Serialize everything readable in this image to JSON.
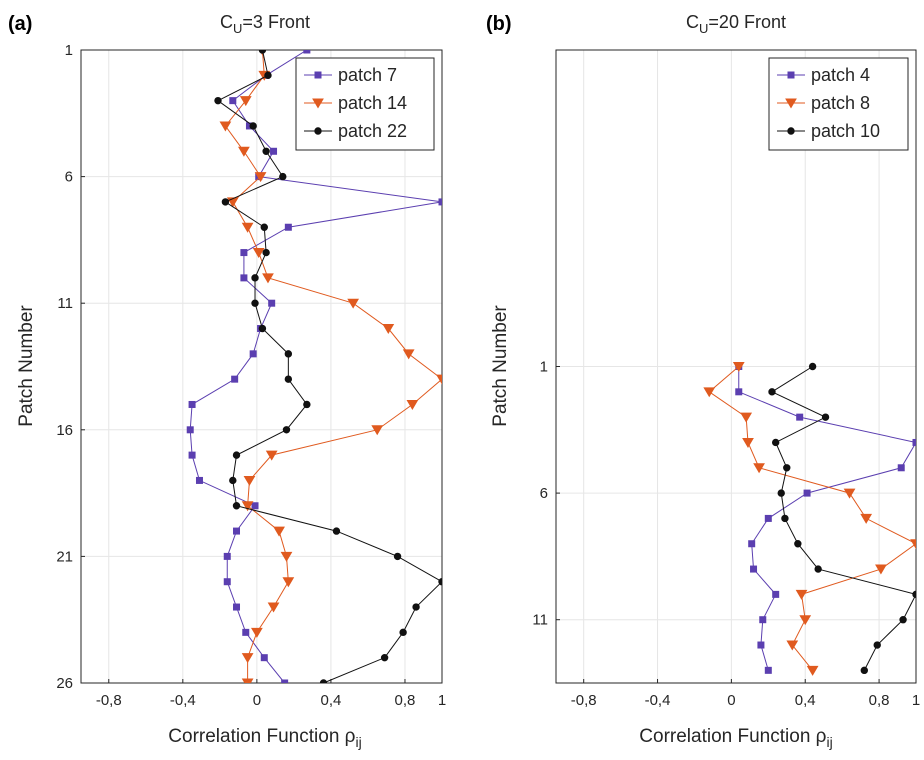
{
  "chart_data": [
    {
      "type": "line",
      "panel_label": "(a)",
      "title": "C",
      "title_sub": "U",
      "title_rest": "=3 Front",
      "xlabel": "Correlation Function ρ",
      "xlabel_sub": "ij",
      "ylabel": "Patch Number",
      "xlim": [
        -0.95,
        1
      ],
      "ylim": [
        1,
        26
      ],
      "y_reversed": true,
      "xticks": [
        -0.8,
        -0.4,
        0,
        0.4,
        0.8,
        1
      ],
      "xtick_labels": [
        "-0,8",
        "-0,4",
        "0",
        "0,4",
        "0,8",
        "1"
      ],
      "yticks": [
        1,
        6,
        11,
        16,
        21,
        26
      ],
      "ytick_labels": [
        "1",
        "6",
        "11",
        "16",
        "21",
        "26"
      ],
      "grid": true,
      "legend_position": "top-right",
      "y": [
        1,
        2,
        3,
        4,
        5,
        6,
        7,
        8,
        9,
        10,
        11,
        12,
        13,
        14,
        15,
        16,
        17,
        18,
        19,
        20,
        21,
        22,
        23,
        24,
        25,
        26
      ],
      "series": [
        {
          "name": "patch 7",
          "color": "#5b3fb0",
          "marker": "square",
          "x": [
            0.27,
            0.05,
            -0.13,
            -0.04,
            0.09,
            0.01,
            1.0,
            0.17,
            -0.07,
            -0.07,
            0.08,
            0.02,
            -0.02,
            -0.12,
            -0.35,
            -0.36,
            -0.35,
            -0.31,
            -0.01,
            -0.11,
            -0.16,
            -0.16,
            -0.11,
            -0.06,
            0.04,
            0.15
          ]
        },
        {
          "name": "patch 14",
          "color": "#e05a1f",
          "marker": "triangle-down",
          "x": [
            0.03,
            0.04,
            -0.06,
            -0.17,
            -0.07,
            0.02,
            -0.13,
            -0.05,
            0.01,
            0.06,
            0.52,
            0.71,
            0.82,
            1.0,
            0.84,
            0.65,
            0.08,
            -0.04,
            -0.05,
            0.12,
            0.16,
            0.17,
            0.09,
            0.0,
            -0.05,
            -0.05
          ]
        },
        {
          "name": "patch 22",
          "color": "#111111",
          "marker": "circle",
          "x": [
            0.03,
            0.06,
            -0.21,
            -0.02,
            0.05,
            0.14,
            -0.17,
            0.04,
            0.05,
            -0.01,
            -0.01,
            0.03,
            0.17,
            0.17,
            0.27,
            0.16,
            -0.11,
            -0.13,
            -0.11,
            0.43,
            0.76,
            1.0,
            0.86,
            0.79,
            0.69,
            0.36
          ]
        }
      ]
    },
    {
      "type": "line",
      "panel_label": "(b)",
      "title": "C",
      "title_sub": "U",
      "title_rest": "=20 Front",
      "xlabel": "Correlation Function ρ",
      "xlabel_sub": "ij",
      "ylabel": "Patch Number",
      "xlim": [
        -0.95,
        1
      ],
      "ylim": [
        -11.5,
        13.5
      ],
      "y_reversed": true,
      "xticks": [
        -0.8,
        -0.4,
        0,
        0.4,
        0.8,
        1
      ],
      "xtick_labels": [
        "-0,8",
        "-0,4",
        "0",
        "0,4",
        "0,8",
        "1"
      ],
      "yticks": [
        1,
        6,
        11
      ],
      "ytick_labels": [
        "1",
        "6",
        "11"
      ],
      "grid": true,
      "legend_position": "top-right",
      "y": [
        1,
        2,
        3,
        4,
        5,
        6,
        7,
        8,
        9,
        10,
        11,
        12,
        13
      ],
      "series": [
        {
          "name": "patch 4",
          "color": "#5b3fb0",
          "marker": "square",
          "x": [
            0.04,
            0.04,
            0.37,
            1.0,
            0.92,
            0.41,
            0.2,
            0.11,
            0.12,
            0.24,
            0.17,
            0.16,
            0.2
          ]
        },
        {
          "name": "patch 8",
          "color": "#e05a1f",
          "marker": "triangle-down",
          "x": [
            0.04,
            -0.12,
            0.08,
            0.09,
            0.15,
            0.64,
            0.73,
            1.0,
            0.81,
            0.38,
            0.4,
            0.33,
            0.44
          ]
        },
        {
          "name": "patch 10",
          "color": "#111111",
          "marker": "circle",
          "x": [
            0.44,
            0.22,
            0.51,
            0.24,
            0.3,
            0.27,
            0.29,
            0.36,
            0.47,
            1.0,
            0.93,
            0.79,
            0.72
          ]
        }
      ]
    }
  ]
}
